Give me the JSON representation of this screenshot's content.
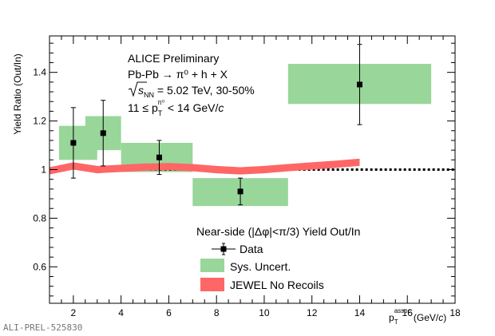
{
  "chart_data": {
    "type": "scatter",
    "xlabel": "p_T^assoc (GeV/c)",
    "xlabel_main": "p",
    "xlabel_sub": "T",
    "xlabel_sup": "assoc",
    "xlabel_unit": " (GeV/",
    "xlabel_unit_c": "c",
    "xlabel_unit_close": ")",
    "ylabel": "Yield Ratio (Out/In)",
    "xlim": [
      1,
      18
    ],
    "ylim": [
      0.45,
      1.55
    ],
    "x_ticks": [
      2,
      4,
      6,
      8,
      10,
      12,
      14,
      16,
      18
    ],
    "y_ticks": [
      0.6,
      0.8,
      1,
      1.2,
      1.4
    ],
    "y_tick_labels": [
      "0.6",
      "0.8",
      "1",
      "1.2",
      "1.4"
    ],
    "reference_line": 1.0,
    "series": [
      {
        "name": "Data",
        "x": [
          2,
          3.25,
          5.6,
          9,
          14
        ],
        "y": [
          1.11,
          1.15,
          1.05,
          0.91,
          1.35
        ],
        "yerr": [
          0.145,
          0.135,
          0.07,
          0.055,
          0.165
        ]
      },
      {
        "name": "Sys. Uncert.",
        "boxes": [
          {
            "x0": 1.4,
            "x1": 3.0,
            "y0": 1.04,
            "y1": 1.18
          },
          {
            "x0": 2.5,
            "x1": 4.0,
            "y0": 1.08,
            "y1": 1.22
          },
          {
            "x0": 4.0,
            "x1": 7.0,
            "y0": 0.99,
            "y1": 1.11
          },
          {
            "x0": 7.0,
            "x1": 11.0,
            "y0": 0.85,
            "y1": 0.965
          },
          {
            "x0": 11.0,
            "x1": 17.0,
            "y0": 1.27,
            "y1": 1.435
          }
        ]
      },
      {
        "name": "JEWEL No Recoils",
        "x": [
          1,
          2,
          3,
          4,
          5,
          6,
          7,
          8,
          9,
          10,
          11,
          12,
          13,
          14
        ],
        "y": [
          0.995,
          1.015,
          1.0,
          1.005,
          1.01,
          1.012,
          1.008,
          1.0,
          0.995,
          1.0,
          1.008,
          1.015,
          1.022,
          1.03
        ]
      }
    ],
    "annotations": {
      "collab": "ALICE Preliminary",
      "system": "Pb-Pb → π⁰ + h + X",
      "energy_sqrt": "s",
      "energy_sub": "NN",
      "energy_rest": " = 5.02 TeV, 30-50%",
      "trig_pre": "11 ≤ p",
      "trig_sub": "T",
      "trig_sup": "π⁰",
      "trig_post": " < 14 GeV/",
      "trig_c": "c"
    },
    "legend": {
      "header": "Near-side (|Δφ|<π/3) Yield Out/In",
      "placement": "bottom-right",
      "items": [
        "Data",
        "Sys. Uncert.",
        "JEWEL No Recoils"
      ]
    },
    "colors": {
      "sys_box": "#99d699",
      "model_band": "#ff6666",
      "data": "#000000"
    }
  },
  "watermark": "ALI-PREL-525830"
}
